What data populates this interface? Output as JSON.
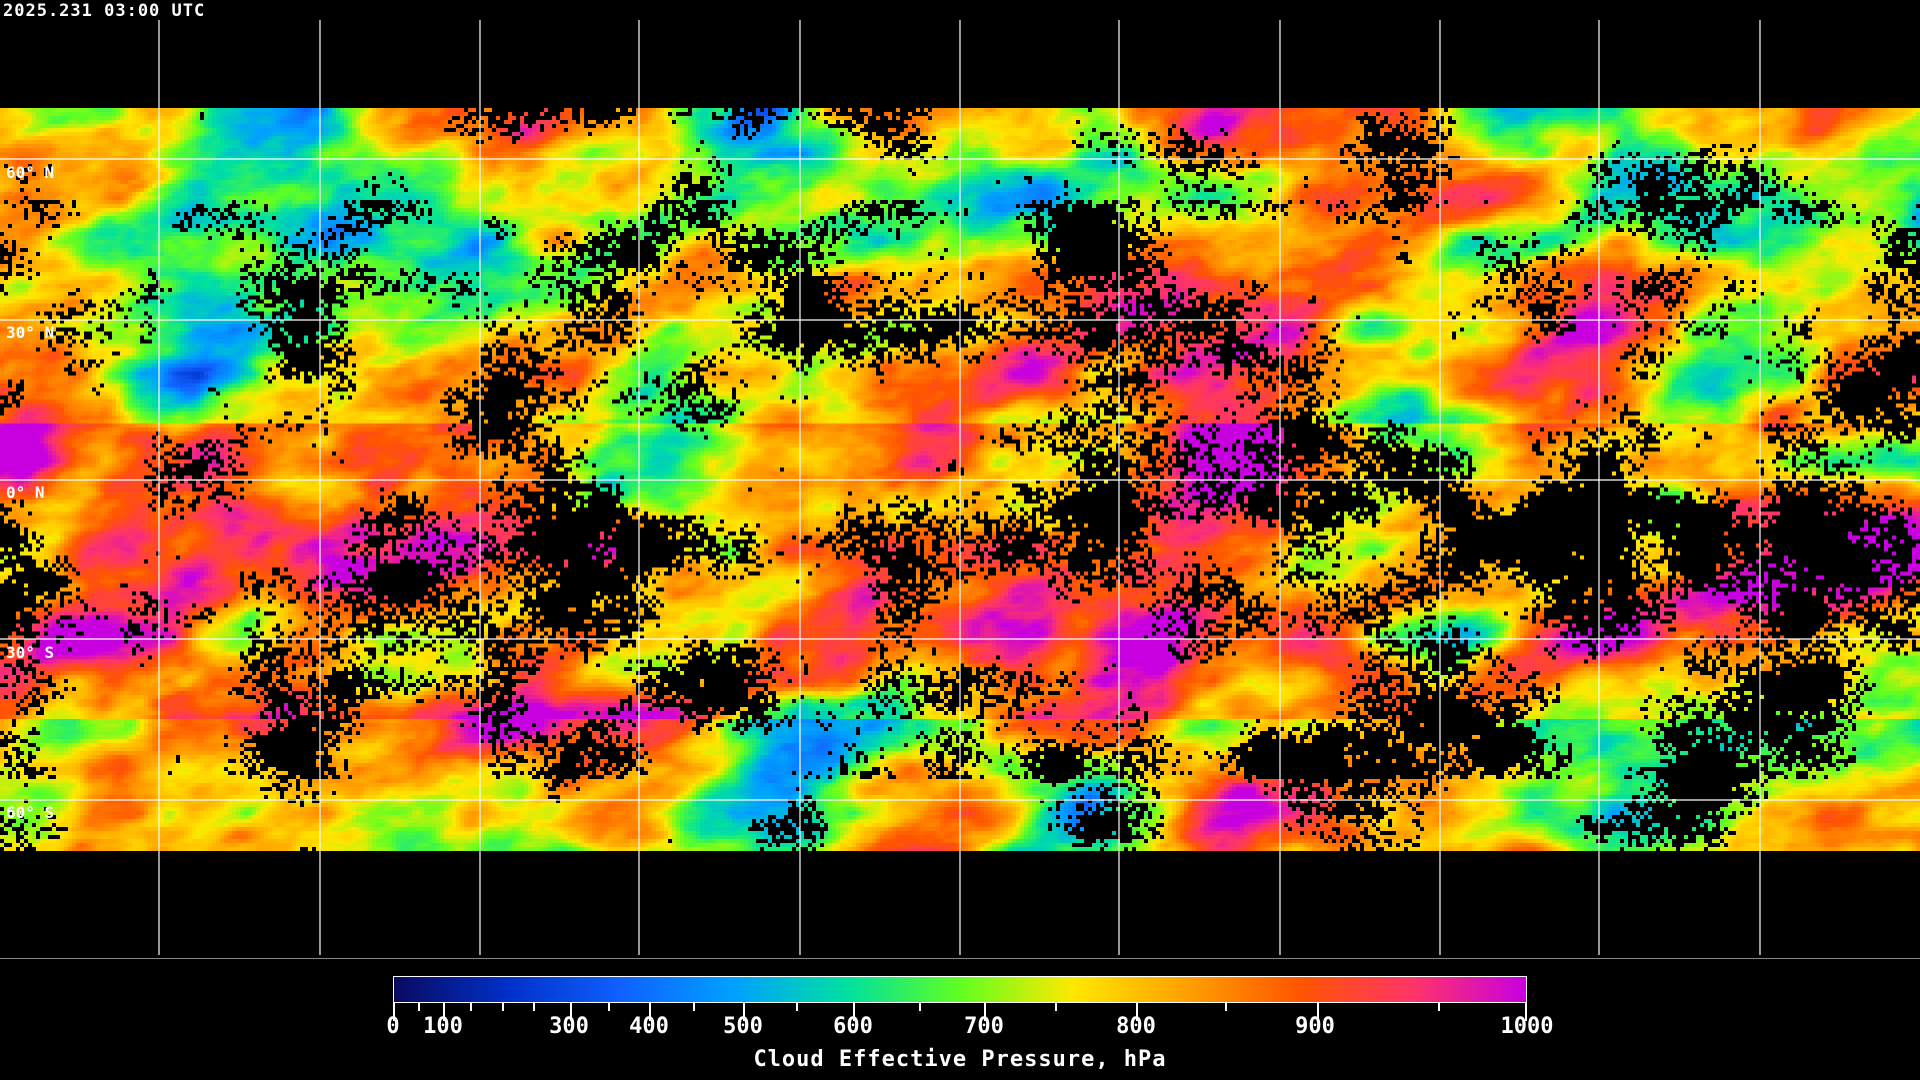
{
  "title": "2025.231 03:00 UTC",
  "map": {
    "latitude_labels": [
      "60° N",
      "30° N",
      "0° N",
      "30° S",
      "60° S"
    ],
    "graticule": "30-degree grid, white",
    "coastlines": "white"
  },
  "colorbar": {
    "title": "Cloud Effective Pressure, hPa",
    "tick_labels": [
      "0",
      "100",
      "300",
      "400",
      "500",
      "600",
      "700",
      "800",
      "900",
      "1000"
    ],
    "range": [
      0,
      1000
    ],
    "colors": [
      "#0a0a60",
      "#0030c8",
      "#1060ff",
      "#00a0ff",
      "#00e0a0",
      "#60ff20",
      "#ffe800",
      "#ffa000",
      "#ff5500",
      "#ff3468",
      "#c800e0"
    ],
    "no_cloud_color": "#000000"
  }
}
